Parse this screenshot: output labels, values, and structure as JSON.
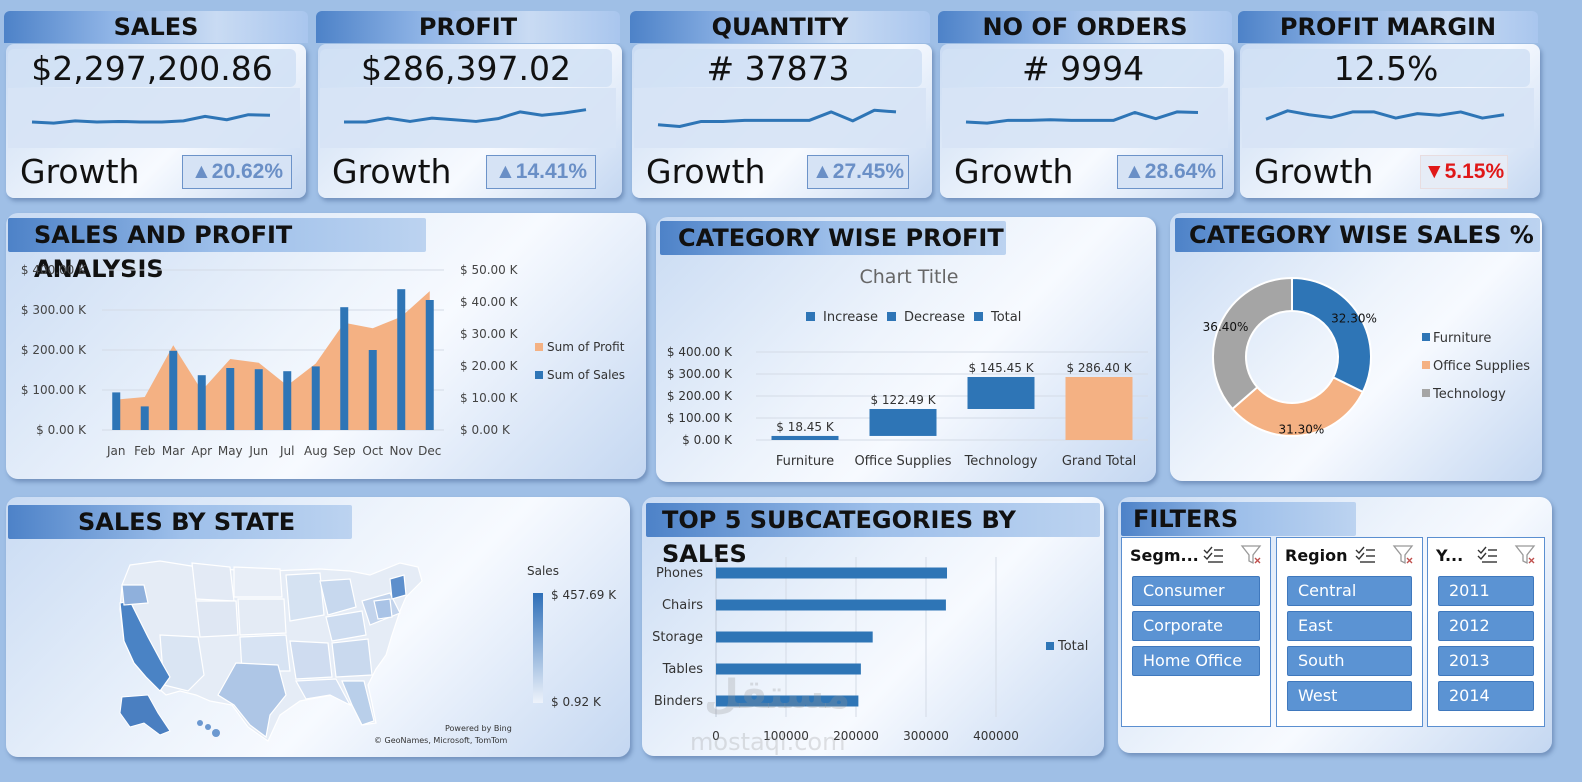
{
  "kpis": [
    {
      "title": "SALES",
      "value": "$2,297,200.86",
      "growth_label": "Growth",
      "growth": "▲20.62%",
      "direction": "up",
      "spark": [
        5.0,
        4.6,
        5.4,
        5.0,
        5.2,
        5.0,
        5.0,
        5.4,
        7.0,
        5.8,
        7.6,
        7.4
      ]
    },
    {
      "title": "PROFIT",
      "value": "$286,397.02",
      "growth_label": "Growth",
      "growth": "▲14.41%",
      "direction": "up",
      "spark": [
        5.0,
        5.0,
        6.4,
        5.2,
        6.4,
        5.8,
        5.2,
        6.2,
        8.6,
        7.4,
        8.2,
        9.4
      ]
    },
    {
      "title": "QUANTITY",
      "value": "# 37873",
      "growth_label": "Growth",
      "growth": "▲27.45%",
      "direction": "up",
      "spark": [
        4.0,
        3.4,
        5.2,
        5.2,
        5.6,
        5.6,
        5.6,
        5.6,
        8.6,
        5.4,
        9.2,
        8.6
      ]
    },
    {
      "title": "NO OF ORDERS",
      "value": "# 9994",
      "growth_label": "Growth",
      "growth": "▲28.64%",
      "direction": "up",
      "spark": [
        5.0,
        4.6,
        5.6,
        5.6,
        5.8,
        5.6,
        5.6,
        5.6,
        8.4,
        6.2,
        8.6,
        8.4
      ]
    },
    {
      "title": "PROFIT MARGIN",
      "value": "12.5%",
      "growth_label": "Growth",
      "growth": "▼5.15%",
      "direction": "down",
      "spark": [
        6.0,
        9.0,
        7.6,
        6.6,
        8.6,
        8.6,
        6.4,
        8.0,
        7.4,
        8.6,
        6.4,
        7.6
      ]
    }
  ],
  "sections": {
    "sales_profit": "SALES AND PROFIT ANALYSIS",
    "category_profit": "CATEGORY WISE PROFIT",
    "category_sales": "CATEGORY WISE SALES %",
    "state": "SALES BY STATE",
    "top5": "TOP 5 SUBCATEGORIES BY SALES",
    "filters": "FILTERS"
  },
  "colors": {
    "blue": "#2e75b6",
    "orange": "#f4b183",
    "gray": "#a5a5a5",
    "badge_up": "#6a8fc6",
    "badge_down": "#e01818"
  },
  "chart_data": [
    {
      "type": "bar",
      "subtype": "combo-column-area",
      "categories": [
        "Jan",
        "Feb",
        "Mar",
        "Apr",
        "May",
        "Jun",
        "Jul",
        "Aug",
        "Sep",
        "Oct",
        "Nov",
        "Dec"
      ],
      "series": [
        {
          "name": "Sum of Sales",
          "type": "column",
          "axis": "left",
          "values": [
            94,
            59,
            198,
            137,
            155,
            152,
            147,
            159,
            307,
            200,
            352,
            325
          ]
        },
        {
          "name": "Sum of Profit",
          "type": "area",
          "axis": "right",
          "values": [
            9.5,
            10.3,
            26.5,
            12.3,
            22.2,
            21.0,
            13.9,
            20.8,
            33.5,
            31.8,
            35.4,
            43.4
          ]
        }
      ],
      "left_ticks": [
        "$ 0.00 K",
        "$ 100.00 K",
        "$ 200.00 K",
        "$ 300.00 K",
        "$ 400.00 K"
      ],
      "right_ticks": [
        "$ 0.00 K",
        "$ 10.00 K",
        "$ 20.00 K",
        "$ 30.00 K",
        "$ 40.00 K",
        "$ 50.00 K"
      ],
      "ylim_left": [
        0,
        400
      ],
      "ylim_right": [
        0,
        50
      ],
      "legend_position": "right",
      "grid": true
    },
    {
      "type": "bar",
      "subtype": "waterfall",
      "title": "Chart Title",
      "categories": [
        "Furniture",
        "Office Supplies",
        "Technology",
        "Grand Total"
      ],
      "values": [
        18.45,
        122.49,
        145.45,
        286.4
      ],
      "data_labels": [
        "$ 18.45 K",
        "$ 122.49 K",
        "$ 145.45 K",
        "$ 286.40 K"
      ],
      "legend": [
        "Increase",
        "Decrease",
        "Total"
      ],
      "y_ticks": [
        "$ 0.00 K",
        "$ 100.00 K",
        "$ 200.00 K",
        "$ 300.00 K",
        "$ 400.00 K"
      ],
      "ylim": [
        0,
        400
      ],
      "legend_position": "top",
      "grid": true
    },
    {
      "type": "pie",
      "subtype": "doughnut",
      "labels": [
        "Furniture",
        "Office Supplies",
        "Technology"
      ],
      "values": [
        32.3,
        31.3,
        36.4
      ],
      "data_labels": [
        "32.30%",
        "31.30%",
        "36.40%"
      ],
      "legend_position": "right"
    },
    {
      "type": "bar",
      "orientation": "horizontal",
      "categories": [
        "Phones",
        "Chairs",
        "Storage",
        "Tables",
        "Binders"
      ],
      "series": [
        {
          "name": "Total",
          "values": [
            330007,
            328449,
            223844,
            206966,
            203413
          ]
        }
      ],
      "x_ticks": [
        "0",
        "100000",
        "200000",
        "300000",
        "400000"
      ],
      "xlim": [
        0,
        400000
      ],
      "legend_position": "right",
      "grid": true
    }
  ],
  "map": {
    "legend_title": "Sales",
    "max_label": "$ 457.69 K",
    "min_label": "$ 0.92 K",
    "powered_by": "Powered by Bing",
    "credits": "© GeoNames, Microsoft, TomTom"
  },
  "watermark": {
    "arabic": "مستقل",
    "latin": "mostaql.com"
  },
  "filters": [
    {
      "header": "Segm...",
      "items": [
        "Consumer",
        "Corporate",
        "Home Office"
      ]
    },
    {
      "header": "Region",
      "items": [
        "Central",
        "East",
        "South",
        "West"
      ]
    },
    {
      "header": "Y...",
      "items": [
        "2011",
        "2012",
        "2013",
        "2014"
      ]
    }
  ]
}
